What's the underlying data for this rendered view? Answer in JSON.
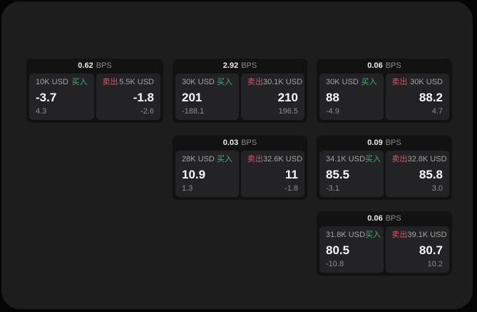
{
  "labels": {
    "buy": "买入",
    "sell": "卖出",
    "bps_unit": "BPS"
  },
  "colors": {
    "buy_green": "#3db273",
    "sell_red": "#d05668",
    "surface": "#1d1d1e",
    "card_bg": "#121213",
    "panel_bg": "#232325"
  },
  "cards": [
    {
      "bps": "0.62",
      "buy": {
        "amount": "10K USD",
        "value": "-3.7",
        "delta": "4.3"
      },
      "sell": {
        "amount": "5.5K USD",
        "value": "-1.8",
        "delta": "-2.6"
      }
    },
    {
      "bps": "2.92",
      "buy": {
        "amount": "30K USD",
        "value": "201",
        "delta": "-188.1"
      },
      "sell": {
        "amount": "30.1K USD",
        "value": "210",
        "delta": "196.5"
      }
    },
    {
      "bps": "0.06",
      "buy": {
        "amount": "30K USD",
        "value": "88",
        "delta": "-4.9"
      },
      "sell": {
        "amount": "30K USD",
        "value": "88.2",
        "delta": "4.7"
      }
    },
    {
      "bps": "0.03",
      "buy": {
        "amount": "28K USD",
        "value": "10.9",
        "delta": "1.3"
      },
      "sell": {
        "amount": "32.6K USD",
        "value": "11",
        "delta": "-1.8"
      }
    },
    {
      "bps": "0.09",
      "buy": {
        "amount": "34.1K USD",
        "value": "85.5",
        "delta": "-3.1"
      },
      "sell": {
        "amount": "32.8K USD",
        "value": "85.8",
        "delta": "3.0"
      }
    },
    {
      "bps": "0.06",
      "buy": {
        "amount": "31.8K USD",
        "value": "80.5",
        "delta": "-10.8"
      },
      "sell": {
        "amount": "39.1K USD",
        "value": "80.7",
        "delta": "10.2"
      }
    }
  ]
}
